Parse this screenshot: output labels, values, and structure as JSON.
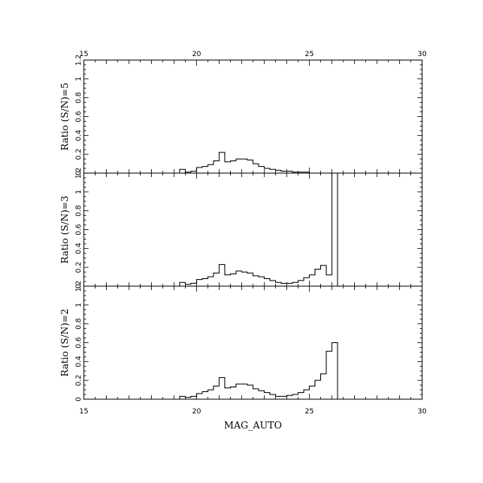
{
  "chart_data": {
    "type": "histogram",
    "xlabel": "MAG_AUTO",
    "xlim": [
      15,
      30
    ],
    "x_ticks": [
      "15",
      "20",
      "25",
      "30"
    ],
    "y_ticks": [
      "0",
      "0.2",
      "0.4",
      "0.6",
      "0.8",
      "1",
      "1.2"
    ],
    "bin_edges": [
      19.0,
      19.25,
      19.5,
      19.75,
      20.0,
      20.25,
      20.5,
      20.75,
      21.0,
      21.25,
      21.5,
      21.75,
      22.0,
      22.25,
      22.5,
      22.75,
      23.0,
      23.25,
      23.5,
      23.75,
      24.0,
      24.25,
      24.5,
      24.75,
      25.0,
      25.25,
      25.5,
      25.75,
      26.0,
      26.25,
      26.5,
      26.75
    ],
    "panels": [
      {
        "ylabel": "Ratio (S/N)=5",
        "ylim": [
          0,
          1.2
        ],
        "values": [
          0.0,
          0.04,
          0.01,
          0.02,
          0.06,
          0.07,
          0.09,
          0.13,
          0.22,
          0.12,
          0.13,
          0.15,
          0.15,
          0.14,
          0.1,
          0.07,
          0.05,
          0.04,
          0.03,
          0.02,
          0.02,
          0.01,
          0.01,
          0.01,
          0.0,
          0.0,
          0.0,
          0.0,
          0.0,
          0.0,
          0.0
        ]
      },
      {
        "ylabel": "Ratio (S/N)=3",
        "ylim": [
          0,
          1.2
        ],
        "values": [
          0.0,
          0.04,
          0.02,
          0.03,
          0.07,
          0.08,
          0.1,
          0.14,
          0.23,
          0.12,
          0.13,
          0.16,
          0.15,
          0.14,
          0.11,
          0.1,
          0.08,
          0.06,
          0.04,
          0.03,
          0.03,
          0.04,
          0.06,
          0.09,
          0.12,
          0.18,
          0.22,
          0.12,
          1.2,
          0.0,
          0.0
        ]
      },
      {
        "ylabel": "Ratio (S/N)=2",
        "ylim": [
          0,
          1.2
        ],
        "values": [
          0.0,
          0.03,
          0.02,
          0.03,
          0.06,
          0.08,
          0.1,
          0.14,
          0.23,
          0.12,
          0.13,
          0.16,
          0.16,
          0.15,
          0.11,
          0.09,
          0.07,
          0.05,
          0.03,
          0.03,
          0.04,
          0.05,
          0.07,
          0.1,
          0.14,
          0.2,
          0.27,
          0.51,
          0.6,
          0.0,
          0.0
        ]
      }
    ]
  }
}
